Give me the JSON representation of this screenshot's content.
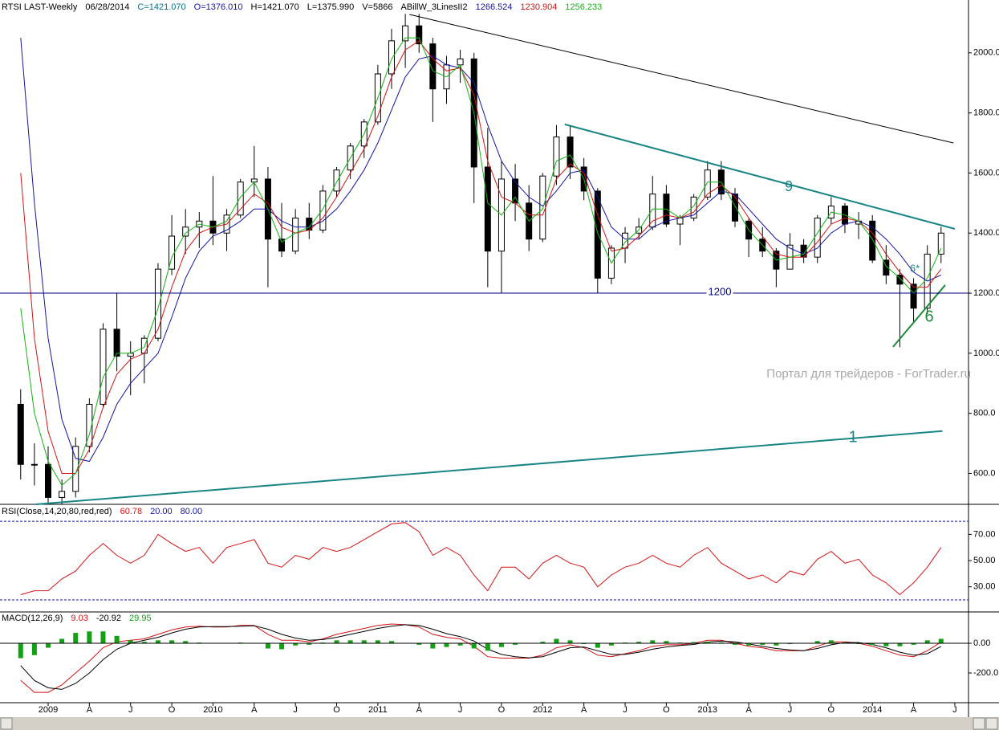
{
  "watermark": "Портал для трейдеров - ForTrader.ru",
  "chart_data": [
    {
      "type": "candlestick",
      "title": "RTSI LAST-Weekly",
      "date": "06/28/2014",
      "readout": [
        "C=1421.070",
        "O=1376.010",
        "H=1421.070",
        "L=1375.990",
        "V=5866"
      ],
      "indicator": "ABillW_3LinesII2",
      "categories": [
        null,
        null,
        "2009",
        null,
        null,
        "A",
        null,
        null,
        "J",
        null,
        null,
        "O",
        null,
        null,
        "2010",
        null,
        null,
        "A",
        null,
        null,
        "J",
        null,
        null,
        "O",
        null,
        null,
        "2011",
        null,
        null,
        "A",
        null,
        null,
        "J",
        null,
        null,
        "O",
        null,
        null,
        "2012",
        null,
        null,
        "A",
        null,
        null,
        "J",
        null,
        null,
        "O",
        null,
        null,
        "2013",
        null,
        null,
        "A",
        null,
        null,
        "J",
        null,
        null,
        "O",
        null,
        null,
        "2014",
        null,
        null,
        "A",
        null,
        null,
        "J"
      ],
      "open": [
        830,
        630,
        630,
        520,
        540,
        690,
        830,
        1080,
        990,
        1000,
        1050,
        1280,
        1390,
        1420,
        1440,
        1400,
        1460,
        1570,
        1580,
        1380,
        1340,
        1450,
        1410,
        1540,
        1610,
        1690,
        1770,
        1930,
        2040,
        2090,
        2030,
        1880,
        1960,
        1980,
        1620,
        1340,
        1580,
        1500,
        1380,
        1590,
        1720,
        1620,
        1540,
        1250,
        1350,
        1400,
        1420,
        1530,
        1430,
        1450,
        1520,
        1610,
        1530,
        1440,
        1380,
        1340,
        1280,
        1360,
        1320,
        1450,
        1490,
        1430,
        1440,
        1310,
        1260,
        1230,
        1150,
        1330,
        null
      ],
      "high": [
        880,
        700,
        690,
        580,
        720,
        850,
        1100,
        1200,
        1040,
        1060,
        1300,
        1460,
        1480,
        1470,
        1590,
        1480,
        1580,
        1690,
        1620,
        1500,
        1480,
        1500,
        1560,
        1620,
        1700,
        1780,
        1960,
        2080,
        2130,
        2130,
        2050,
        1990,
        2010,
        2000,
        1750,
        1640,
        1630,
        1560,
        1600,
        1760,
        1760,
        1650,
        1550,
        1360,
        1420,
        1450,
        1590,
        1560,
        1460,
        1530,
        1640,
        1640,
        1550,
        1450,
        1420,
        1350,
        1400,
        1380,
        1460,
        1520,
        1500,
        1470,
        1460,
        1360,
        1280,
        1250,
        1360,
        1421,
        null
      ],
      "low": [
        580,
        560,
        500,
        498,
        520,
        670,
        820,
        940,
        860,
        900,
        1040,
        1260,
        1330,
        1350,
        1360,
        1340,
        1450,
        1520,
        1220,
        1320,
        1330,
        1380,
        1400,
        1520,
        1580,
        1650,
        1760,
        1880,
        1950,
        2000,
        1770,
        1830,
        1900,
        1500,
        1220,
        1200,
        1440,
        1340,
        1370,
        1560,
        1580,
        1510,
        1200,
        1230,
        1300,
        1380,
        1410,
        1420,
        1360,
        1440,
        1510,
        1510,
        1420,
        1320,
        1320,
        1220,
        1280,
        1300,
        1300,
        1430,
        1400,
        1380,
        1300,
        1230,
        1020,
        1100,
        1130,
        1300,
        null
      ],
      "close": [
        630,
        630,
        520,
        540,
        690,
        830,
        1080,
        990,
        1000,
        1050,
        1280,
        1390,
        1420,
        1440,
        1400,
        1460,
        1570,
        1580,
        1380,
        1340,
        1450,
        1410,
        1540,
        1610,
        1690,
        1770,
        1930,
        2040,
        2090,
        2030,
        1880,
        1960,
        1980,
        1620,
        1340,
        1580,
        1500,
        1380,
        1590,
        1720,
        1620,
        1540,
        1250,
        1350,
        1400,
        1420,
        1530,
        1430,
        1450,
        1520,
        1610,
        1530,
        1440,
        1380,
        1340,
        1280,
        1360,
        1320,
        1450,
        1490,
        1430,
        1440,
        1310,
        1260,
        1230,
        1150,
        1330,
        1400,
        null
      ],
      "color": "#000000",
      "series": [
        {
          "color": "#1414a8",
          "readout": "1266.524",
          "values": [
            2050,
            1500,
            1050,
            780,
            650,
            640,
            720,
            830,
            900,
            950,
            1000,
            1120,
            1250,
            1340,
            1390,
            1410,
            1440,
            1480,
            1480,
            1440,
            1420,
            1420,
            1440,
            1480,
            1540,
            1610,
            1700,
            1810,
            1920,
            1980,
            1990,
            1960,
            1950,
            1900,
            1760,
            1640,
            1570,
            1520,
            1490,
            1540,
            1600,
            1610,
            1520,
            1420,
            1380,
            1380,
            1420,
            1440,
            1450,
            1460,
            1500,
            1540,
            1530,
            1480,
            1430,
            1380,
            1350,
            1330,
            1350,
            1400,
            1430,
            1440,
            1420,
            1380,
            1330,
            1270,
            1240,
            1260,
            null
          ]
        },
        {
          "color": "#d41414",
          "readout": "1230.904",
          "values": [
            1600,
            1050,
            740,
            600,
            600,
            680,
            820,
            930,
            980,
            1000,
            1080,
            1220,
            1340,
            1400,
            1420,
            1430,
            1480,
            1530,
            1500,
            1420,
            1400,
            1410,
            1450,
            1520,
            1600,
            1680,
            1790,
            1920,
            2010,
            2040,
            1980,
            1940,
            1950,
            1860,
            1640,
            1520,
            1500,
            1460,
            1460,
            1580,
            1630,
            1600,
            1460,
            1340,
            1350,
            1390,
            1440,
            1460,
            1450,
            1470,
            1530,
            1560,
            1520,
            1450,
            1390,
            1330,
            1320,
            1320,
            1370,
            1430,
            1450,
            1440,
            1400,
            1330,
            1270,
            1220,
            1220,
            1280,
            null
          ]
        },
        {
          "color": "#14b414",
          "readout": "1256.233",
          "values": [
            1150,
            800,
            640,
            560,
            600,
            730,
            920,
            1000,
            1000,
            1020,
            1150,
            1320,
            1400,
            1430,
            1420,
            1440,
            1520,
            1570,
            1480,
            1370,
            1400,
            1420,
            1480,
            1570,
            1650,
            1730,
            1850,
            1980,
            2050,
            2050,
            1940,
            1920,
            1960,
            1800,
            1500,
            1460,
            1520,
            1440,
            1480,
            1640,
            1660,
            1580,
            1400,
            1300,
            1370,
            1410,
            1480,
            1480,
            1450,
            1490,
            1570,
            1570,
            1490,
            1410,
            1360,
            1310,
            1320,
            1330,
            1400,
            1470,
            1460,
            1440,
            1380,
            1290,
            1250,
            1200,
            1250,
            1350,
            null
          ]
        }
      ],
      "ylim": [
        497,
        2176
      ],
      "yticks": [
        {
          "value": 600,
          "label": "600.0"
        },
        {
          "value": 800,
          "label": "800.0"
        },
        {
          "value": 1000,
          "label": "1000.0"
        },
        {
          "value": 1200,
          "label": "1200.0"
        },
        {
          "value": 1400,
          "label": "1400.0"
        },
        {
          "value": 1600,
          "label": "1600.0"
        },
        {
          "value": 1800,
          "label": "1800.0"
        },
        {
          "value": 2000,
          "label": "2000.0"
        }
      ],
      "annotations": [
        {
          "kind": "trend",
          "from": [
            28.3,
            2128
          ],
          "to": [
            67.9,
            1700
          ],
          "color": "#000000"
        },
        {
          "kind": "trend",
          "label": "9",
          "from": [
            39.6,
            1762
          ],
          "to": [
            68.0,
            1414
          ],
          "color": "#1a8585"
        },
        {
          "kind": "trend",
          "label": "1",
          "from": [
            1.1,
            497
          ],
          "to": [
            67.1,
            741
          ],
          "color": "#1a8585"
        },
        {
          "kind": "trend",
          "label": "6",
          "from": [
            63.5,
            1021
          ],
          "to": [
            67.3,
            1227
          ],
          "color": "#1f8a3a"
        },
        {
          "kind": "hline",
          "value": 1200,
          "color": "#000080"
        },
        {
          "kind": "text",
          "label": "6*",
          "color": "#1a8585"
        }
      ]
    },
    {
      "type": "line",
      "title": "RSI(Close,14,20,80,red,red)",
      "series": [
        {
          "color": "#d41414",
          "readout": "60.78",
          "values": [
            24,
            27,
            27,
            36,
            42,
            54,
            63,
            54,
            48,
            54,
            70,
            63,
            57,
            60,
            48,
            60,
            63,
            66,
            48,
            45,
            54,
            51,
            60,
            57,
            60,
            66,
            72,
            78,
            79,
            72,
            54,
            60,
            54,
            39,
            27,
            45,
            45,
            36,
            48,
            54,
            48,
            45,
            30,
            39,
            45,
            48,
            54,
            48,
            45,
            54,
            60,
            48,
            42,
            36,
            39,
            33,
            42,
            39,
            51,
            57,
            48,
            51,
            39,
            33,
            24,
            33,
            45,
            60,
            null
          ]
        }
      ],
      "levels": [
        {
          "value": 20,
          "label": "20.00"
        },
        {
          "value": 80,
          "label": "80.00"
        }
      ],
      "level_color": "#1414a8",
      "ylim": [
        10.8,
        91.7
      ],
      "yticks": [
        {
          "value": 30,
          "label": "30.00"
        },
        {
          "value": 50,
          "label": "50.00"
        },
        {
          "value": 70,
          "label": "70.00"
        }
      ]
    },
    {
      "type": "line",
      "title": "MACD(12,26,9)",
      "series": [
        {
          "color": "#d41414",
          "readout": "9.03",
          "values": [
            -250,
            -330,
            -330,
            -280,
            -200,
            -120,
            -30,
            10,
            20,
            30,
            60,
            90,
            110,
            115,
            110,
            110,
            120,
            120,
            60,
            20,
            20,
            10,
            30,
            60,
            80,
            100,
            120,
            130,
            125,
            110,
            60,
            40,
            30,
            -20,
            -90,
            -100,
            -100,
            -100,
            -80,
            -30,
            -10,
            -30,
            -80,
            -90,
            -70,
            -50,
            -20,
            -10,
            -10,
            0,
            20,
            20,
            0,
            -20,
            -30,
            -50,
            -50,
            -50,
            -20,
            10,
            10,
            0,
            -20,
            -50,
            -80,
            -90,
            -50,
            9,
            null
          ]
        },
        {
          "color": "#000000",
          "readout": "-20.92",
          "values": [
            -150,
            -250,
            -300,
            -310,
            -270,
            -200,
            -110,
            -40,
            0,
            20,
            40,
            70,
            95,
            110,
            112,
            112,
            115,
            118,
            95,
            60,
            35,
            20,
            25,
            40,
            60,
            80,
            100,
            115,
            125,
            120,
            95,
            65,
            45,
            15,
            -40,
            -75,
            -90,
            -98,
            -90,
            -60,
            -30,
            -25,
            -50,
            -75,
            -75,
            -60,
            -40,
            -25,
            -15,
            -8,
            8,
            15,
            10,
            -5,
            -20,
            -35,
            -45,
            -50,
            -35,
            -10,
            5,
            5,
            -8,
            -30,
            -60,
            -80,
            -70,
            -21,
            null
          ]
        },
        {
          "type": "bar",
          "color": "#14a014",
          "readout": "29.95",
          "values": [
            -100,
            -80,
            -30,
            30,
            70,
            80,
            80,
            50,
            20,
            10,
            20,
            20,
            15,
            5,
            -2,
            -2,
            5,
            2,
            -35,
            -40,
            -15,
            -10,
            5,
            20,
            20,
            20,
            20,
            15,
            0,
            -10,
            -35,
            -25,
            -15,
            -35,
            -50,
            -25,
            -10,
            -2,
            10,
            30,
            20,
            -5,
            -30,
            -15,
            5,
            10,
            20,
            15,
            5,
            8,
            12,
            5,
            -10,
            -15,
            -10,
            -15,
            -5,
            0,
            15,
            20,
            5,
            -5,
            -12,
            -20,
            -20,
            -10,
            20,
            30,
            null
          ]
        }
      ],
      "ylim": [
        -400,
        211
      ],
      "yticks": [
        {
          "value": -200,
          "label": "-200.0"
        },
        {
          "value": 0,
          "label": "0.00"
        }
      ]
    }
  ]
}
